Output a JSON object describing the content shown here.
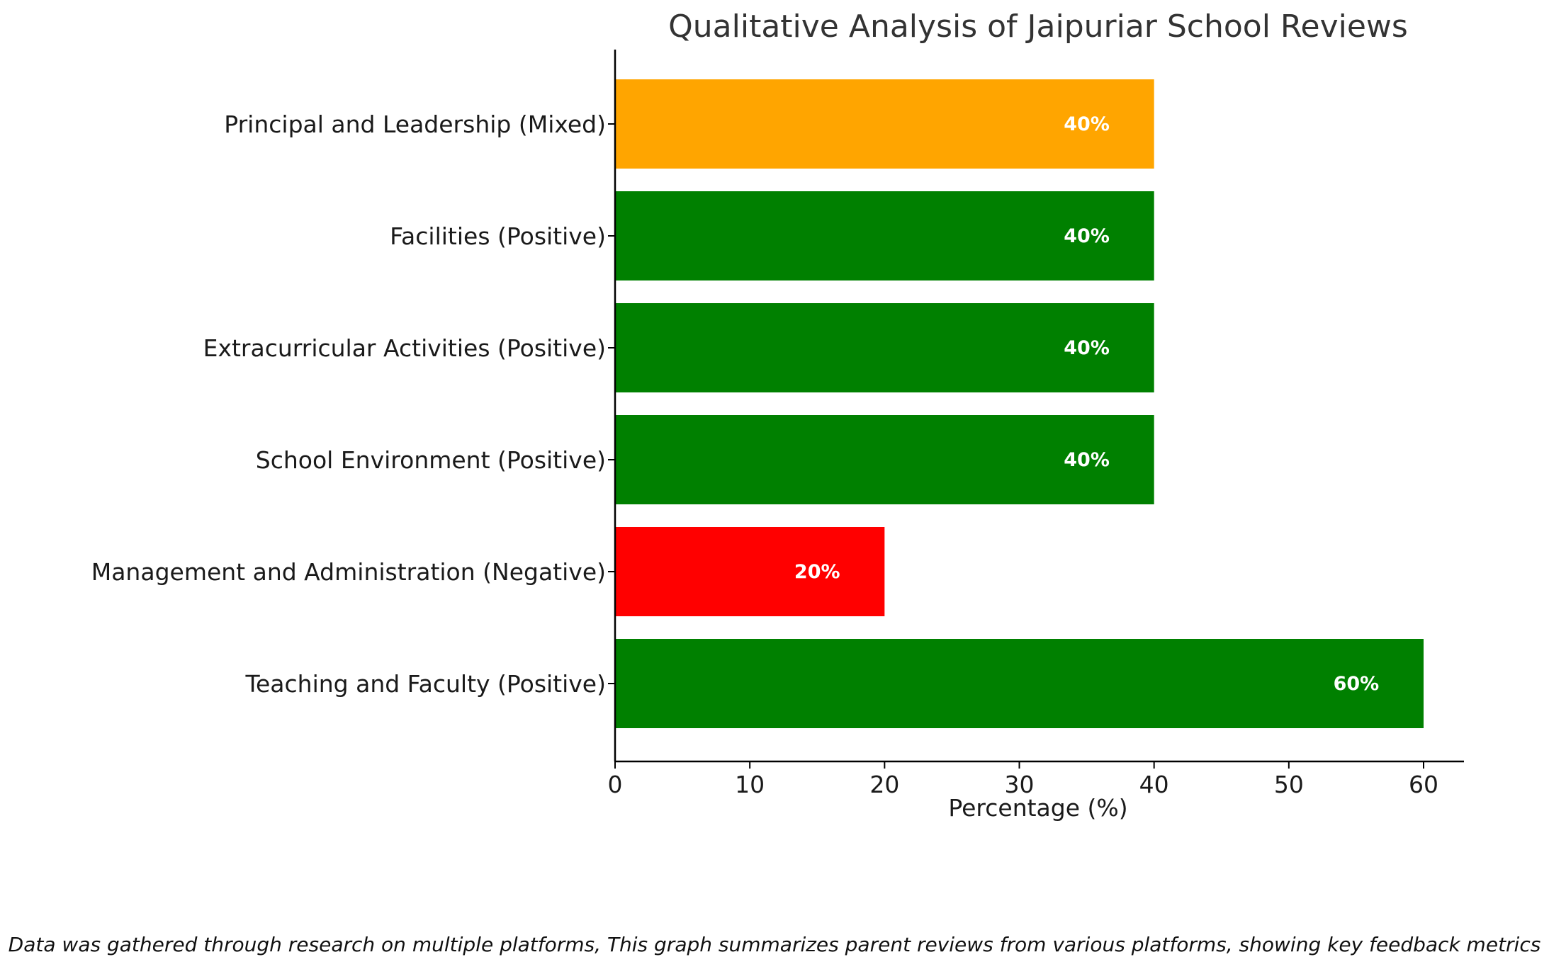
{
  "chart_data": {
    "type": "bar",
    "orientation": "horizontal",
    "title": "Qualitative Analysis of Jaipuriar School Reviews",
    "xlabel": "Percentage (%)",
    "ylabel": "",
    "xlim": [
      0,
      63
    ],
    "xticks": [
      0,
      10,
      20,
      30,
      40,
      50,
      60
    ],
    "grid": false,
    "categories": [
      "Teaching and Faculty (Positive)",
      "Management and Administration (Negative)",
      "School Environment (Positive)",
      "Extracurricular Activities (Positive)",
      "Facilities (Positive)",
      "Principal and Leadership (Mixed)"
    ],
    "values": [
      60,
      20,
      40,
      40,
      40,
      40
    ],
    "data_labels": [
      "60%",
      "20%",
      "40%",
      "40%",
      "40%",
      "40%"
    ],
    "colors": [
      "#008000",
      "#ff0000",
      "#008000",
      "#008000",
      "#008000",
      "#ffa500"
    ]
  },
  "footnote": "Data was gathered through research on multiple platforms, This graph summarizes parent reviews from various platforms, showing key feedback metrics"
}
